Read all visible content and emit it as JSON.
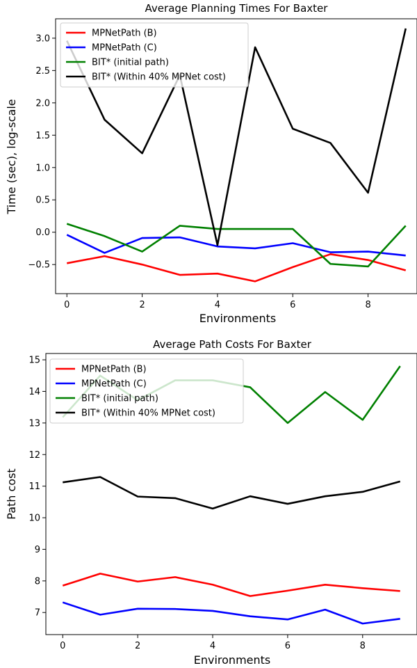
{
  "chart_data": [
    {
      "type": "line",
      "title": "Average Planning Times For Baxter",
      "xlabel": "Environments",
      "ylabel": "Time (sec), log-scale",
      "xlim": [
        -0.3,
        9.3
      ],
      "ylim": [
        -0.95,
        3.3
      ],
      "xticks": [
        0,
        2,
        4,
        6,
        8
      ],
      "xtick_labels": [
        "0",
        "2",
        "4",
        "6",
        "8"
      ],
      "yticks": [
        -0.5,
        0.0,
        0.5,
        1.0,
        1.5,
        2.0,
        2.5,
        3.0
      ],
      "ytick_labels": [
        "−0.5",
        "0.0",
        "0.5",
        "1.0",
        "1.5",
        "2.0",
        "2.5",
        "3.0"
      ],
      "legend_position": "top-left",
      "x": [
        0,
        1,
        2,
        3,
        4,
        5,
        6,
        7,
        8,
        9
      ],
      "series": [
        {
          "name": "MPNetPath (B)",
          "color": "#ff0000",
          "values": [
            -0.48,
            -0.37,
            -0.5,
            -0.66,
            -0.64,
            -0.76,
            -0.54,
            -0.34,
            -0.43,
            -0.59
          ]
        },
        {
          "name": "MPNetPath (C)",
          "color": "#0000ff",
          "values": [
            -0.04,
            -0.32,
            -0.09,
            -0.08,
            -0.22,
            -0.25,
            -0.17,
            -0.31,
            -0.3,
            -0.36
          ]
        },
        {
          "name": "BIT* (initial path)",
          "color": "#008000",
          "values": [
            0.13,
            -0.06,
            -0.3,
            0.1,
            0.05,
            0.05,
            0.05,
            -0.49,
            -0.53,
            0.1
          ]
        },
        {
          "name": "BIT* (Within 40% MPNet cost)",
          "color": "#000000",
          "values": [
            2.96,
            1.74,
            1.22,
            2.43,
            -0.2,
            2.86,
            1.6,
            1.38,
            0.61,
            3.15
          ]
        }
      ]
    },
    {
      "type": "line",
      "title": "Average Path Costs For Baxter",
      "xlabel": "Environments",
      "ylabel": "Path cost",
      "xlim": [
        -0.45,
        9.45
      ],
      "ylim": [
        6.3,
        15.2
      ],
      "xticks": [
        0,
        2,
        4,
        6,
        8
      ],
      "xtick_labels": [
        "0",
        "2",
        "4",
        "6",
        "8"
      ],
      "yticks": [
        7,
        8,
        9,
        10,
        11,
        12,
        13,
        14,
        15
      ],
      "ytick_labels": [
        "7",
        "8",
        "9",
        "10",
        "11",
        "12",
        "13",
        "14",
        "15"
      ],
      "legend_position": "top-left",
      "x": [
        0,
        1,
        2,
        3,
        4,
        5,
        6,
        7,
        8,
        9
      ],
      "series": [
        {
          "name": "MPNetPath (B)",
          "color": "#ff0000",
          "values": [
            7.85,
            8.23,
            7.98,
            8.12,
            7.88,
            7.52,
            7.69,
            7.88,
            7.77,
            7.68
          ]
        },
        {
          "name": "MPNetPath (C)",
          "color": "#0000ff",
          "values": [
            7.32,
            6.93,
            7.12,
            7.11,
            7.05,
            6.88,
            6.78,
            7.09,
            6.65,
            6.8
          ]
        },
        {
          "name": "BIT* (initial path)",
          "color": "#008000",
          "values": [
            13.18,
            14.5,
            13.72,
            14.35,
            14.35,
            14.13,
            13.0,
            13.98,
            13.1,
            14.8
          ]
        },
        {
          "name": "BIT* (Within 40% MPNet cost)",
          "color": "#000000",
          "values": [
            11.12,
            11.29,
            10.67,
            10.62,
            10.29,
            10.68,
            10.44,
            10.68,
            10.82,
            11.15
          ]
        }
      ]
    }
  ]
}
